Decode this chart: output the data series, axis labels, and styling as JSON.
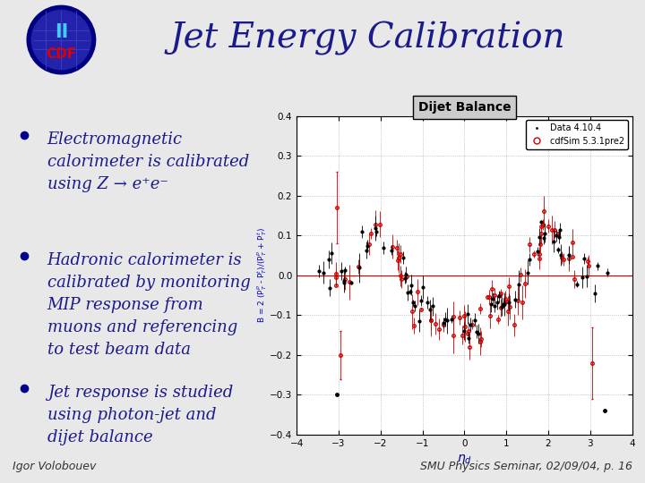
{
  "title": "Jet Energy Calibration",
  "title_color": "#1a1a8c",
  "title_fontsize": 28,
  "bg_color": "#e8e8e8",
  "header_bg": "#ffffff",
  "divider_color": "#00008B",
  "bullet_color": "#00008B",
  "bullet_text_color": "#1a1a8c",
  "bullet_fontsize": 13,
  "bullets": [
    "Electromagnetic\ncalorimeter is calibrated\nusing Z → e⁺e⁻",
    "Hadronic calorimeter is\ncalibrated by monitoring\nMIP response from\nmuons and referencing\nto test beam data",
    "Jet response is studied\nusing photon-jet and\ndijet balance"
  ],
  "footer_left": "Igor Volobouev",
  "footer_right": "SMU Physics Seminar, 02/09/04, p. 16",
  "footer_fontsize": 9,
  "footer_color": "#333333",
  "plot_title": "Dijet Balance",
  "plot_ylabel": "B = 2 (P$_T^p$ - P$_T^t$)/(P$_T^p$ + P$_T^t$)",
  "plot_xlabel": "η$_d$",
  "plot_xlim": [
    -4,
    4
  ],
  "plot_ylim": [
    -0.4,
    0.4
  ],
  "plot_xticks": [
    -4,
    -3,
    -2,
    -1,
    0,
    1,
    2,
    3,
    4
  ],
  "plot_yticks": [
    -0.4,
    -0.3,
    -0.2,
    -0.1,
    0.0,
    0.1,
    0.2,
    0.3,
    0.4
  ],
  "legend_entries": [
    "Data 4.10.4",
    "cdfSim 5.3.1pre2"
  ],
  "data_color": "#000000",
  "sim_color": "#cc0000"
}
